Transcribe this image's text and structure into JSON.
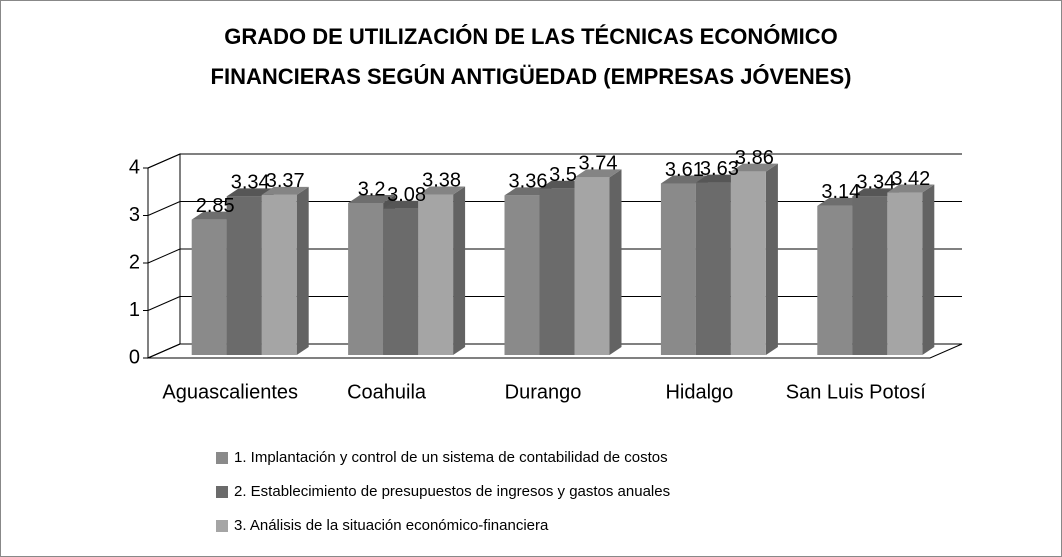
{
  "chart_data": {
    "type": "bar3d",
    "title": [
      "GRADO DE UTILIZACIÓN DE LAS TÉCNICAS ECONÓMICO",
      "FINANCIERAS SEGÚN ANTIGÜEDAD (EMPRESAS JÓVENES)"
    ],
    "categories": [
      "Aguascalientes",
      "Coahuila",
      "Durango",
      "Hidalgo",
      "San Luis Potosí"
    ],
    "series": [
      {
        "name": "1. Implantación y control de un sistema de contabilidad de costos",
        "color": "#8a8a8a",
        "values": [
          2.85,
          3.2,
          3.36,
          3.61,
          3.14
        ]
      },
      {
        "name": "2. Establecimiento de presupuestos de ingresos y gastos anuales",
        "color": "#6b6b6b",
        "values": [
          3.34,
          3.08,
          3.5,
          3.63,
          3.34
        ]
      },
      {
        "name": "3. Análisis de la situación económico-financiera",
        "color": "#a5a5a5",
        "values": [
          3.37,
          3.38,
          3.74,
          3.86,
          3.42
        ]
      }
    ],
    "ylim": [
      0,
      4
    ],
    "yticks": [
      0,
      1,
      2,
      3,
      4
    ],
    "grid": true,
    "legend": "bottom"
  }
}
